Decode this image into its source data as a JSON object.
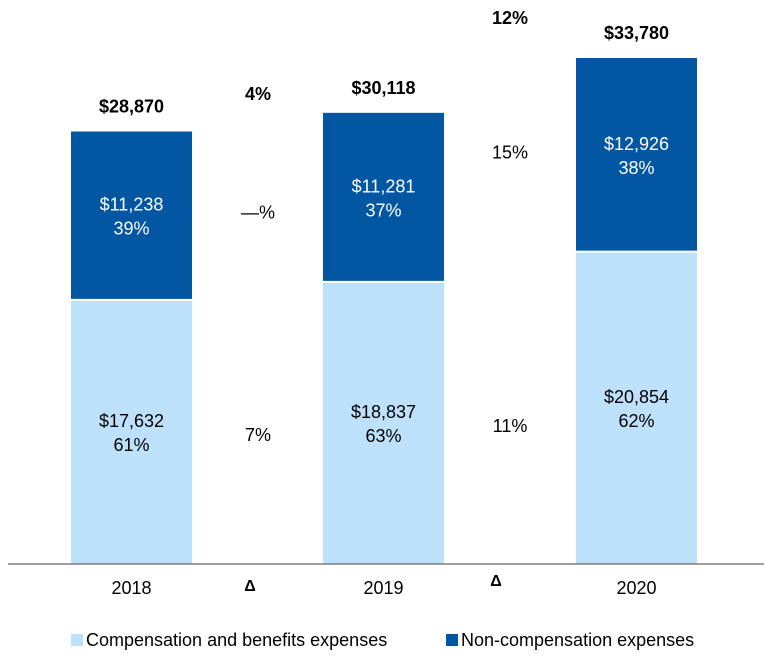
{
  "chart_data": {
    "type": "bar",
    "stacked": true,
    "categories": [
      "2018",
      "2019",
      "2020"
    ],
    "series": [
      {
        "name": "Compensation and benefits expenses",
        "color": "#bde0fb",
        "values": [
          17632,
          18837,
          20854
        ],
        "value_labels": [
          "$17,632",
          "$18,837",
          "$20,854"
        ],
        "pct_labels": [
          "61%",
          "63%",
          "62%"
        ]
      },
      {
        "name": "Non-compensation expenses",
        "color": "#0356a2",
        "values": [
          11238,
          11281,
          12926
        ],
        "value_labels": [
          "$11,238",
          "$11,281",
          "$12,926"
        ],
        "pct_labels": [
          "39%",
          "37%",
          "38%"
        ]
      }
    ],
    "totals": [
      28870,
      30118,
      33780
    ],
    "total_labels": [
      "$28,870",
      "$30,118",
      "$33,780"
    ],
    "changes": [
      {
        "symbol": "Δ",
        "total": "4%",
        "non_compensation": "—%",
        "compensation": "7%"
      },
      {
        "symbol": "Δ",
        "total": "12%",
        "non_compensation": "15%",
        "compensation": "11%"
      }
    ],
    "ylim": [
      0,
      35000
    ],
    "grid": false,
    "legend_position": "bottom"
  }
}
